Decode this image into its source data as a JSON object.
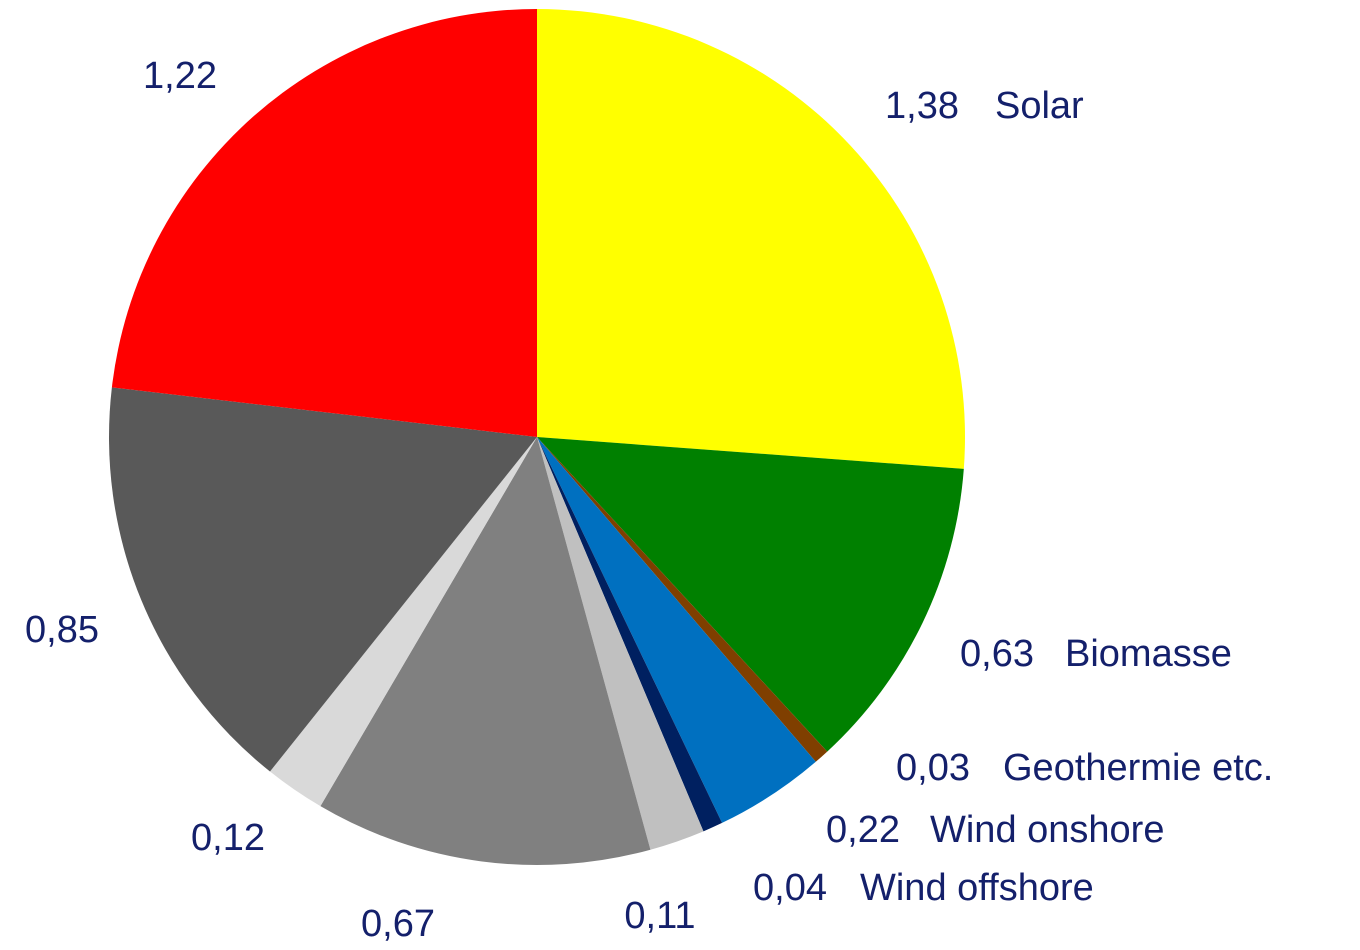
{
  "chart_data": {
    "type": "pie",
    "categories": [
      "Solar",
      "Biomasse",
      "Geothermie etc.",
      "Wind onshore",
      "Wind offshore",
      null,
      null,
      null,
      null,
      null
    ],
    "values": [
      1.38,
      0.63,
      0.03,
      0.22,
      0.04,
      0.11,
      0.67,
      0.12,
      0.85,
      1.22
    ],
    "value_labels": [
      "1,38",
      "0,63",
      "0,03",
      "0,22",
      "0,04",
      "0,11",
      "0,67",
      "0,12",
      "0,85",
      "1,22"
    ],
    "colors": [
      "#ffff00",
      "#008000",
      "#7f3f00",
      "#0070c0",
      "#002060",
      "#c0c0c0",
      "#808080",
      "#d9d9d9",
      "#595959",
      "#ff0000"
    ]
  }
}
